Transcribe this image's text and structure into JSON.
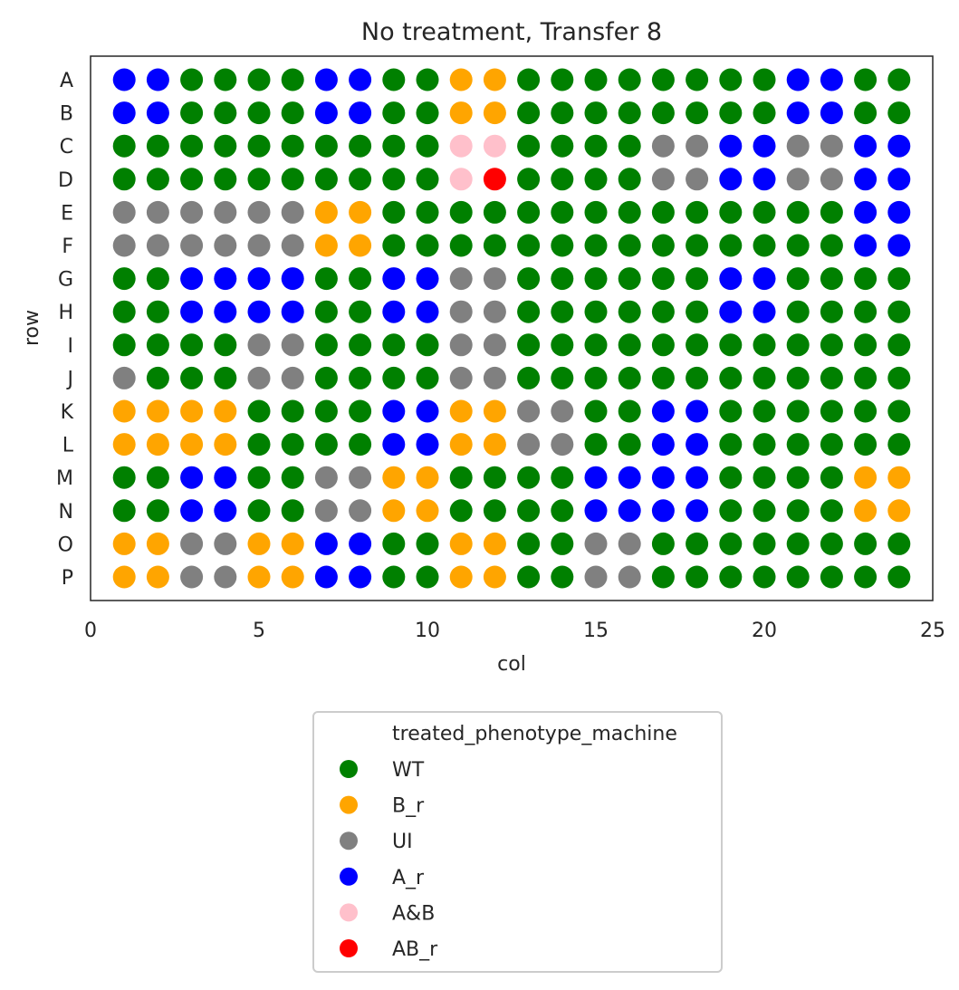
{
  "chart_data": {
    "type": "scatter",
    "title": "No treatment, Transfer 8",
    "xlabel": "col",
    "ylabel": "row",
    "xlim": [
      0,
      25
    ],
    "xticks": [
      0,
      5,
      10,
      15,
      20,
      25
    ],
    "rows": [
      "A",
      "B",
      "C",
      "D",
      "E",
      "F",
      "G",
      "H",
      "I",
      "J",
      "K",
      "L",
      "M",
      "N",
      "O",
      "P"
    ],
    "columns": [
      1,
      2,
      3,
      4,
      5,
      6,
      7,
      8,
      9,
      10,
      11,
      12,
      13,
      14,
      15,
      16,
      17,
      18,
      19,
      20,
      21,
      22,
      23,
      24
    ],
    "grid": false,
    "legend": {
      "title": "treated_phenotype_machine",
      "placement": "below"
    },
    "categories": [
      {
        "code": "W",
        "name": "WT",
        "color": "#008000"
      },
      {
        "code": "B",
        "name": "B_r",
        "color": "#FFA500"
      },
      {
        "code": "U",
        "name": "UI",
        "color": "#808080"
      },
      {
        "code": "A",
        "name": "A_r",
        "color": "#0000FF"
      },
      {
        "code": "P",
        "name": "A&B",
        "color": "#FFC0CB"
      },
      {
        "code": "R",
        "name": "AB_r",
        "color": "#FF0000"
      }
    ],
    "wells": [
      "AAWWWWAAWWBBWWWWWWWWAAWW",
      "AAWWWWAAWWBBWWWWWWWWAAWW",
      "WWWWWWWWWWPPWWWWUUAAUUAA",
      "WWWWWWWWWWPRWWWWUUAAUUAA",
      "UUUUUUBBWWWWWWWWWWWWWWAA",
      "UUUUUUBBWWWWWWWWWWWWWWAA",
      "WWAAAAWWAAUUWWWWWWAAWWWW",
      "WWAAAAWWAAUUWWWWWWAAWWWW",
      "WWWWUUWWWWUUWWWWWWWWWWWW",
      "UWWWUUWWWWUUWWWWWWWWWWWW",
      "BBBBWWWWAABBUUWWAAWWWWWW",
      "BBBBWWWWAABBUUWWAAWWWWWW",
      "WWAAWWUUBBWWWWAAAAWWWWBB",
      "WWAAWWUUBBWWWWAAAAWWWWBB",
      "BBUUBBAAWWBBWWUUWWWWWWWW",
      "BBUUBBAAWWBBWWUUWWWWWWWW"
    ]
  }
}
